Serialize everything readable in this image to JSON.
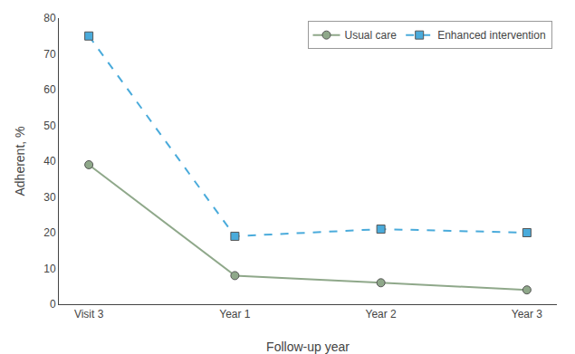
{
  "chart_data": {
    "type": "line",
    "categories": [
      "Visit 3",
      "Year 1",
      "Year 2",
      "Year 3"
    ],
    "series": [
      {
        "name": "Usual care",
        "color": "#8FA88A",
        "values": [
          39,
          8,
          6,
          4
        ],
        "marker": "circle",
        "line_style": "solid"
      },
      {
        "name": "Enhanced intervention",
        "color": "#4AABDB",
        "values": [
          75,
          19,
          21,
          20
        ],
        "marker": "square",
        "line_style": "dashed"
      }
    ],
    "xlabel": "Follow-up year",
    "ylabel": "Adherent, %",
    "ylim": [
      0,
      80
    ],
    "yticks": [
      0,
      10,
      20,
      30,
      40,
      50,
      60,
      70,
      80
    ],
    "grid": false,
    "legend": "upper right"
  }
}
